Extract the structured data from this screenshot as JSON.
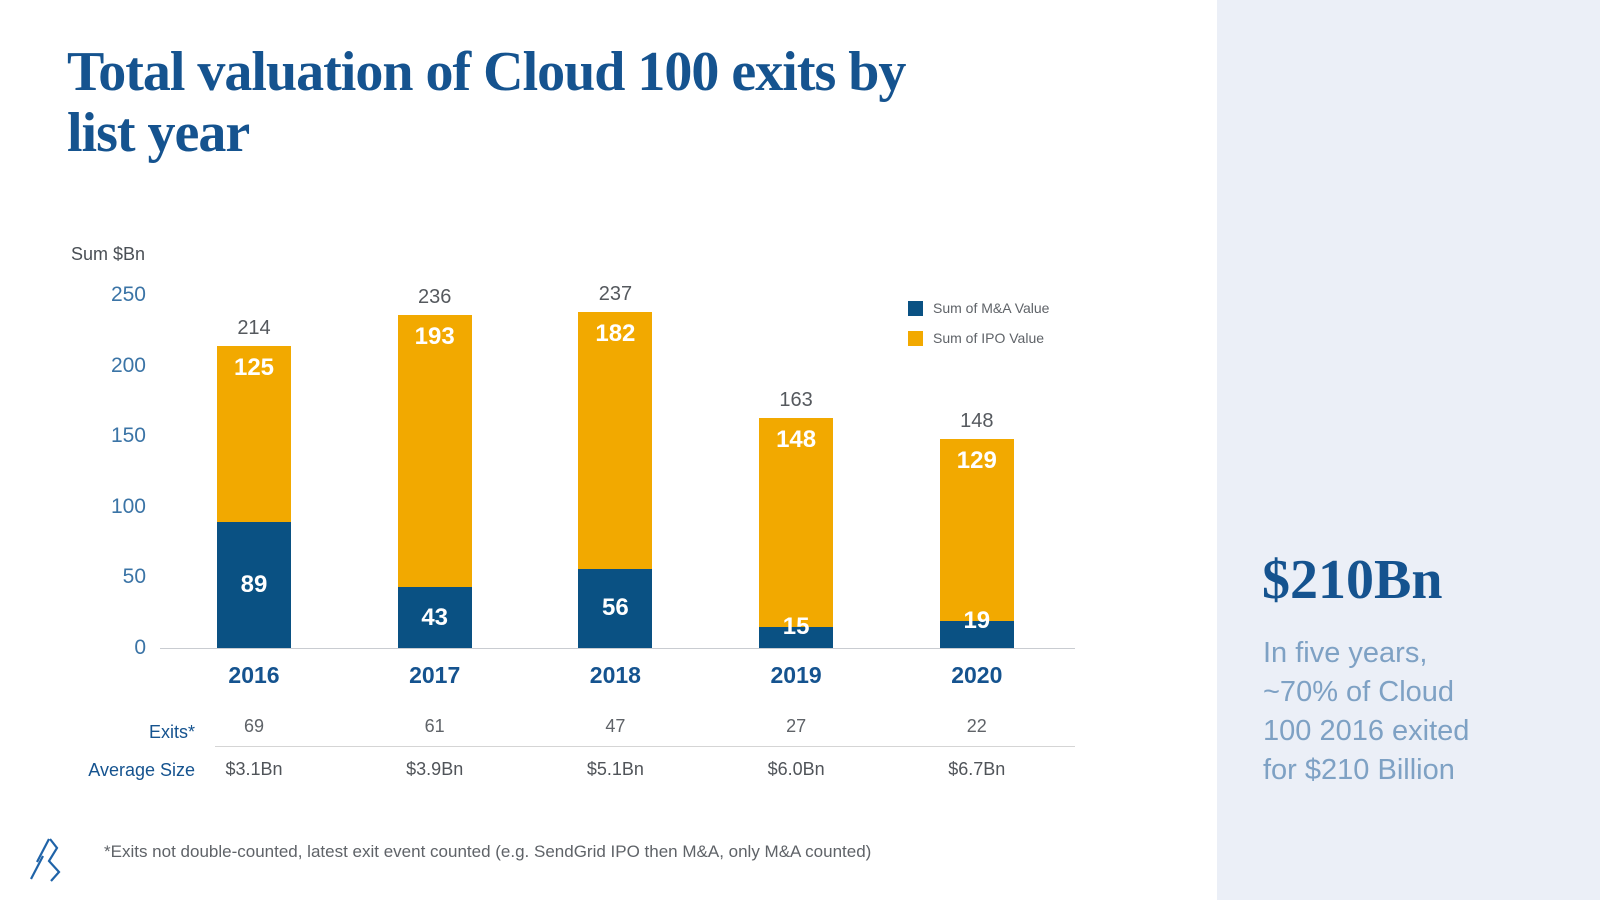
{
  "page": {
    "title": "Total valuation of Cloud 100 exits by list year"
  },
  "chart_data": {
    "type": "bar",
    "stacked": true,
    "title": "Total valuation of Cloud 100 exits by list year",
    "xlabel": "",
    "ylabel": "Sum $Bn",
    "ylim": [
      0,
      250
    ],
    "yticks": [
      0,
      50,
      100,
      150,
      200,
      250
    ],
    "grid": false,
    "legend_position": "top-right",
    "categories": [
      "2016",
      "2017",
      "2018",
      "2019",
      "2020"
    ],
    "series": [
      {
        "name": "Sum of M&A Value",
        "color": "#0A5183",
        "values": [
          89,
          43,
          56,
          15,
          19
        ]
      },
      {
        "name": "Sum of IPO Value",
        "color": "#F2A900",
        "values": [
          125,
          193,
          182,
          148,
          129
        ]
      }
    ],
    "totals": [
      214,
      236,
      237,
      163,
      148
    ]
  },
  "table": {
    "rows": [
      {
        "label": "Exits*",
        "values": [
          "69",
          "61",
          "47",
          "27",
          "22"
        ]
      },
      {
        "label": "Average Size",
        "values": [
          "$3.1Bn",
          "$3.9Bn",
          "$5.1Bn",
          "$6.0Bn",
          "$6.7Bn"
        ]
      }
    ]
  },
  "sidebar": {
    "headline": "$210Bn",
    "body": "In five years, ~70% of Cloud 100 2016 exited for $210 Billion"
  },
  "footnote": "*Exits not double-counted, latest exit event counted (e.g. SendGrid IPO then M&A, only M&A counted)",
  "icons": {
    "logo": "bvp-slashes-logo"
  },
  "colors": {
    "title_blue": "#15538F",
    "axis_tick_blue": "#3B74A6",
    "bar_ma_blue": "#0A5183",
    "bar_ipo_orange": "#F2A900",
    "value_text_white": "#FFFFFF",
    "total_label_gray": "#55595E",
    "body_text_gray": "#5F6368",
    "sidebar_bg": "#EBEFF7",
    "sidebar_text_blue": "#7EA1C4",
    "divider_gray": "#D5D5D5"
  }
}
